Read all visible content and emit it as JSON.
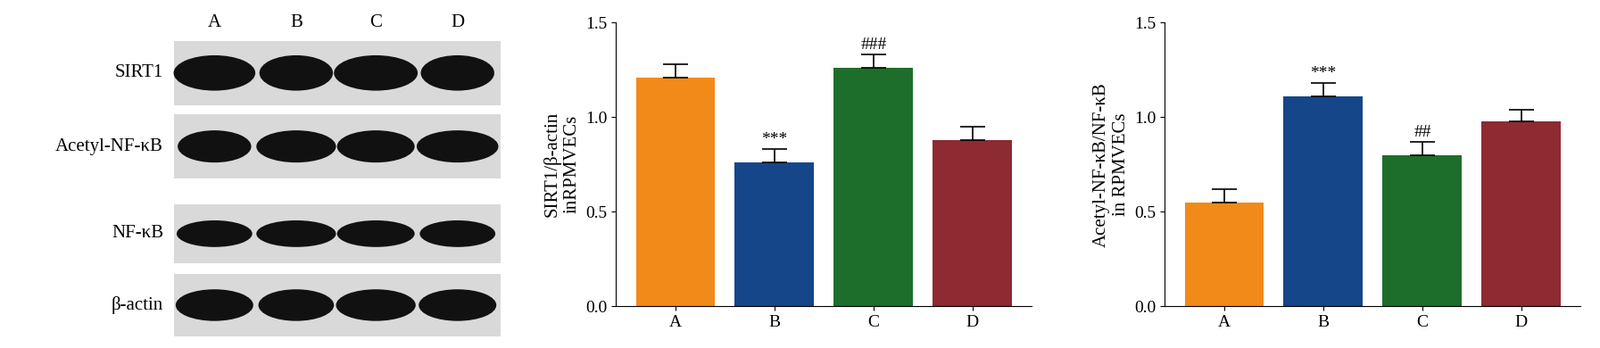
{
  "blot": {
    "lanes": [
      "A",
      "B",
      "C",
      "D"
    ],
    "rows": [
      "SIRT1",
      "Acetyl-NF-κB",
      "NF-κB",
      "β-actin"
    ]
  },
  "chart_data": [
    {
      "type": "bar",
      "y_label": "SIRT1/β-actin\ninRPMVECs",
      "categories": [
        "A",
        "B",
        "C",
        "D"
      ],
      "values": [
        1.21,
        0.76,
        1.26,
        0.88
      ],
      "errors": [
        0.07,
        0.07,
        0.07,
        0.07
      ],
      "significance": [
        null,
        "***",
        "###",
        null
      ],
      "colors": [
        "#f28a1a",
        "#15468a",
        "#1e6e2b",
        "#8e2a31"
      ],
      "ylim": [
        0,
        1.5
      ],
      "yticks": [
        {
          "value": 0,
          "label": "0.0"
        },
        0.5,
        {
          "value": 1,
          "label": "1.0"
        },
        1.5
      ]
    },
    {
      "type": "bar",
      "y_label": "Acetyl-NF-κB/NF-κB\nin RPMVECs",
      "categories": [
        "A",
        "B",
        "C",
        "D"
      ],
      "values": [
        0.55,
        1.11,
        0.8,
        0.98
      ],
      "errors": [
        0.07,
        0.07,
        0.07,
        0.06
      ],
      "significance": [
        null,
        "***",
        "##",
        null
      ],
      "colors": [
        "#f28a1a",
        "#15468a",
        "#1e6e2b",
        "#8e2a31"
      ],
      "ylim": [
        0,
        1.5
      ],
      "yticks": [
        {
          "value": 0,
          "label": "0.0"
        },
        0.5,
        {
          "value": 1,
          "label": "1.0"
        },
        1.5
      ]
    }
  ]
}
